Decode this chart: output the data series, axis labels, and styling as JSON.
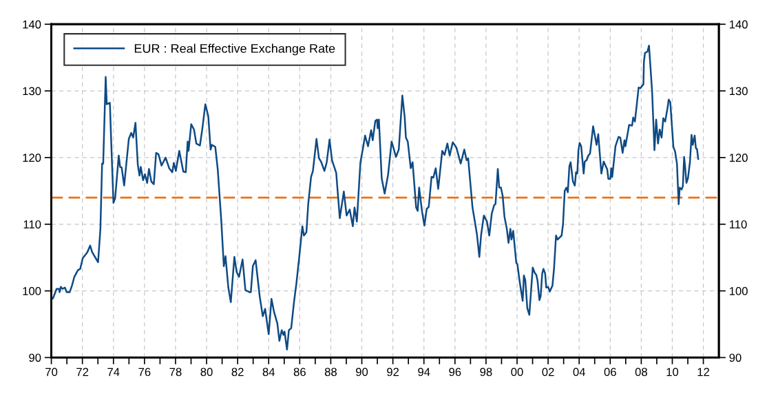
{
  "chart_data": {
    "type": "line",
    "x": [
      1970.0,
      1970.11,
      1970.34,
      1970.49,
      1970.53,
      1970.61,
      1970.72,
      1970.87,
      1970.99,
      1971.18,
      1971.33,
      1971.48,
      1971.71,
      1971.86,
      1972.02,
      1972.32,
      1972.5,
      1972.63,
      1973.01,
      1973.16,
      1973.27,
      1973.34,
      1973.5,
      1973.57,
      1973.77,
      1973.85,
      1974.0,
      1974.11,
      1974.34,
      1974.43,
      1974.53,
      1974.69,
      1974.99,
      1975.15,
      1975.27,
      1975.42,
      1975.57,
      1975.68,
      1975.76,
      1975.91,
      1976.03,
      1976.17,
      1976.29,
      1976.44,
      1976.6,
      1976.75,
      1976.9,
      1977.1,
      1977.36,
      1977.59,
      1977.79,
      1977.89,
      1978.02,
      1978.24,
      1978.5,
      1978.66,
      1978.78,
      1978.84,
      1979.01,
      1979.19,
      1979.34,
      1979.57,
      1979.73,
      1979.92,
      1980.11,
      1980.26,
      1980.34,
      1980.56,
      1980.72,
      1980.95,
      1981.11,
      1981.22,
      1981.4,
      1981.56,
      1981.79,
      1981.94,
      1982.09,
      1982.32,
      1982.5,
      1982.78,
      1982.85,
      1982.98,
      1983.16,
      1983.42,
      1983.62,
      1983.77,
      1984.0,
      1984.18,
      1984.34,
      1984.56,
      1984.69,
      1984.84,
      1984.95,
      1985.02,
      1985.18,
      1985.3,
      1985.45,
      1985.63,
      1985.79,
      1985.97,
      1986.17,
      1986.27,
      1986.43,
      1986.55,
      1986.73,
      1986.85,
      1987.08,
      1987.24,
      1987.39,
      1987.59,
      1987.74,
      1987.92,
      1988.08,
      1988.35,
      1988.58,
      1988.84,
      1989.02,
      1989.22,
      1989.42,
      1989.53,
      1989.68,
      1989.91,
      1990.06,
      1990.21,
      1990.4,
      1990.6,
      1990.7,
      1990.87,
      1990.98,
      1991.02,
      1991.1,
      1991.28,
      1991.47,
      1991.69,
      1991.92,
      1992.2,
      1992.38,
      1992.61,
      1992.76,
      1992.84,
      1992.96,
      1993.15,
      1993.27,
      1993.5,
      1993.6,
      1993.69,
      1993.88,
      1994.03,
      1994.18,
      1994.31,
      1994.49,
      1994.61,
      1994.76,
      1994.92,
      1995.18,
      1995.33,
      1995.51,
      1995.66,
      1995.86,
      1996.09,
      1996.37,
      1996.6,
      1996.75,
      1996.85,
      1997.13,
      1997.31,
      1997.42,
      1997.57,
      1997.68,
      1997.86,
      1998.06,
      1998.21,
      1998.37,
      1998.53,
      1998.61,
      1998.76,
      1998.85,
      1998.96,
      1999.07,
      1999.19,
      1999.34,
      1999.45,
      1999.57,
      1999.64,
      1999.75,
      1999.95,
      2000.02,
      2000.18,
      2000.36,
      2000.44,
      2000.53,
      2000.66,
      2000.79,
      2001.01,
      2001.14,
      2001.24,
      2001.32,
      2001.44,
      2001.52,
      2001.62,
      2001.7,
      2001.81,
      2001.88,
      2002.0,
      2002.11,
      2002.28,
      2002.38,
      2002.51,
      2002.61,
      2002.87,
      2002.96,
      2003.07,
      2003.18,
      2003.27,
      2003.37,
      2003.45,
      2003.6,
      2003.72,
      2003.8,
      2003.88,
      2003.95,
      2004.03,
      2004.13,
      2004.29,
      2004.36,
      2004.48,
      2004.59,
      2004.7,
      2004.9,
      2005.12,
      2005.23,
      2005.43,
      2005.58,
      2005.81,
      2005.88,
      2006.01,
      2006.07,
      2006.13,
      2006.34,
      2006.54,
      2006.65,
      2006.8,
      2006.92,
      2006.98,
      2007.22,
      2007.41,
      2007.48,
      2007.59,
      2007.71,
      2007.83,
      2007.94,
      2008.14,
      2008.17,
      2008.24,
      2008.4,
      2008.5,
      2008.7,
      2008.85,
      2008.96,
      2009.08,
      2009.19,
      2009.31,
      2009.42,
      2009.54,
      2009.69,
      2009.77,
      2009.87,
      2010.07,
      2010.18,
      2010.3,
      2010.41,
      2010.48,
      2010.6,
      2010.68,
      2010.76,
      2010.83,
      2010.91,
      2011.01,
      2011.14,
      2011.24,
      2011.32,
      2011.44,
      2011.52,
      2011.59,
      2011.67
    ],
    "series": [
      {
        "name": "EUR : Real Effective Exchange Rate",
        "color": "#0e4a84",
        "values": [
          98.7,
          98.9,
          100.3,
          100.3,
          99.8,
          100.6,
          100.3,
          100.5,
          99.8,
          99.8,
          100.8,
          102.1,
          103.1,
          103.3,
          104.9,
          105.8,
          106.8,
          105.8,
          104.3,
          109.3,
          119.1,
          119.1,
          132.1,
          128.0,
          128.2,
          122.8,
          113.2,
          113.9,
          120.3,
          118.6,
          118.5,
          115.8,
          122.8,
          123.7,
          123.0,
          125.2,
          118.9,
          117.3,
          118.6,
          116.6,
          117.5,
          116.2,
          118.3,
          116.4,
          116.0,
          120.7,
          120.5,
          118.8,
          120.0,
          118.4,
          117.8,
          119.2,
          118.0,
          121.0,
          117.9,
          117.8,
          122.4,
          121.0,
          125.0,
          124.2,
          122.1,
          121.8,
          124.4,
          128.0,
          126.2,
          121.2,
          121.9,
          121.6,
          118.2,
          110.4,
          103.7,
          105.2,
          100.5,
          98.3,
          105.1,
          102.8,
          102.1,
          104.7,
          100.1,
          99.8,
          99.8,
          103.7,
          104.6,
          99.2,
          96.2,
          97.3,
          93.5,
          98.8,
          96.9,
          95.1,
          92.5,
          94.1,
          93.4,
          93.9,
          91.2,
          94.1,
          94.4,
          98.3,
          101.2,
          105.1,
          109.7,
          108.3,
          108.8,
          113.1,
          117.1,
          118.0,
          122.8,
          119.9,
          119.3,
          118.0,
          119.3,
          122.7,
          119.6,
          117.7,
          110.9,
          114.9,
          111.3,
          112.2,
          109.7,
          112.5,
          110.4,
          119.3,
          121.2,
          123.3,
          121.7,
          124.1,
          122.6,
          125.5,
          125.7,
          124.4,
          125.7,
          116.9,
          114.6,
          117.4,
          122.4,
          120.1,
          121.2,
          129.3,
          126.1,
          123.0,
          122.4,
          118.4,
          119.3,
          112.5,
          112.0,
          115.5,
          111.9,
          109.8,
          112.3,
          112.6,
          117.1,
          117.0,
          118.4,
          115.3,
          121.0,
          120.4,
          122.1,
          120.3,
          122.3,
          121.5,
          119.1,
          121.2,
          119.6,
          119.9,
          112.5,
          110.0,
          108.4,
          105.1,
          108.3,
          111.3,
          110.4,
          108.3,
          111.6,
          112.9,
          113.0,
          118.3,
          115.5,
          115.5,
          114.3,
          111.1,
          109.3,
          107.2,
          109.3,
          107.7,
          109.0,
          104.2,
          104.0,
          101.2,
          98.5,
          102.3,
          101.6,
          97.4,
          96.4,
          103.5,
          102.7,
          102.4,
          101.5,
          98.6,
          99.2,
          102.6,
          103.3,
          102.6,
          100.5,
          100.6,
          99.9,
          100.8,
          103.3,
          108.3,
          107.7,
          108.3,
          110.0,
          115.0,
          115.5,
          114.8,
          118.7,
          119.3,
          116.4,
          115.8,
          117.8,
          117.6,
          121.0,
          122.2,
          121.7,
          117.6,
          119.4,
          119.6,
          120.3,
          120.6,
          124.7,
          121.9,
          123.5,
          117.6,
          119.4,
          118.2,
          116.8,
          116.8,
          118.4,
          117.1,
          121.7,
          123.1,
          123.0,
          120.7,
          122.6,
          121.7,
          124.9,
          124.8,
          126.0,
          125.4,
          127.9,
          130.5,
          130.4,
          131.0,
          134.3,
          135.7,
          135.9,
          136.8,
          129.9,
          121.1,
          125.7,
          122.1,
          124.2,
          123.0,
          125.9,
          125.4,
          127.4,
          128.7,
          128.3,
          121.6,
          120.9,
          119.1,
          113.0,
          115.5,
          115.2,
          115.7,
          120.1,
          118.5,
          116.2,
          116.9,
          119.4,
          123.4,
          121.9,
          123.3,
          121.4,
          121.3,
          119.8
        ]
      }
    ],
    "xlim": [
      1970,
      2013
    ],
    "xticks": [
      {
        "value": 1970,
        "label": "70"
      },
      {
        "value": 1971,
        "label": null
      },
      {
        "value": 1972,
        "label": "72"
      },
      {
        "value": 1973,
        "label": null
      },
      {
        "value": 1974,
        "label": "74"
      },
      {
        "value": 1975,
        "label": null
      },
      {
        "value": 1976,
        "label": "76"
      },
      {
        "value": 1977,
        "label": null
      },
      {
        "value": 1978,
        "label": "78"
      },
      {
        "value": 1979,
        "label": null
      },
      {
        "value": 1980,
        "label": "80"
      },
      {
        "value": 1981,
        "label": null
      },
      {
        "value": 1982,
        "label": "82"
      },
      {
        "value": 1983,
        "label": null
      },
      {
        "value": 1984,
        "label": "84"
      },
      {
        "value": 1985,
        "label": null
      },
      {
        "value": 1986,
        "label": "86"
      },
      {
        "value": 1987,
        "label": null
      },
      {
        "value": 1988,
        "label": "88"
      },
      {
        "value": 1989,
        "label": null
      },
      {
        "value": 1990,
        "label": "90"
      },
      {
        "value": 1991,
        "label": null
      },
      {
        "value": 1992,
        "label": "92"
      },
      {
        "value": 1993,
        "label": null
      },
      {
        "value": 1994,
        "label": "94"
      },
      {
        "value": 1995,
        "label": null
      },
      {
        "value": 1996,
        "label": "96"
      },
      {
        "value": 1997,
        "label": null
      },
      {
        "value": 1998,
        "label": "98"
      },
      {
        "value": 1999,
        "label": null
      },
      {
        "value": 2000,
        "label": "00"
      },
      {
        "value": 2001,
        "label": null
      },
      {
        "value": 2002,
        "label": "02"
      },
      {
        "value": 2003,
        "label": null
      },
      {
        "value": 2004,
        "label": "04"
      },
      {
        "value": 2005,
        "label": null
      },
      {
        "value": 2006,
        "label": "06"
      },
      {
        "value": 2007,
        "label": null
      },
      {
        "value": 2008,
        "label": "08"
      },
      {
        "value": 2009,
        "label": null
      },
      {
        "value": 2010,
        "label": "10"
      },
      {
        "value": 2011,
        "label": null
      },
      {
        "value": 2012,
        "label": "12"
      }
    ],
    "ylim": [
      90,
      140
    ],
    "yticks": [
      90,
      100,
      110,
      120,
      130,
      140
    ],
    "y2lim": [
      90,
      140
    ],
    "y2ticks": [
      90,
      100,
      110,
      120,
      130,
      140
    ],
    "ref_lines": [
      {
        "axis": "y",
        "value": 114,
        "color": "#f07010",
        "line_style": "dashed"
      }
    ],
    "grid": true,
    "legend": "top left",
    "line_style": "solid",
    "marker": "none"
  }
}
